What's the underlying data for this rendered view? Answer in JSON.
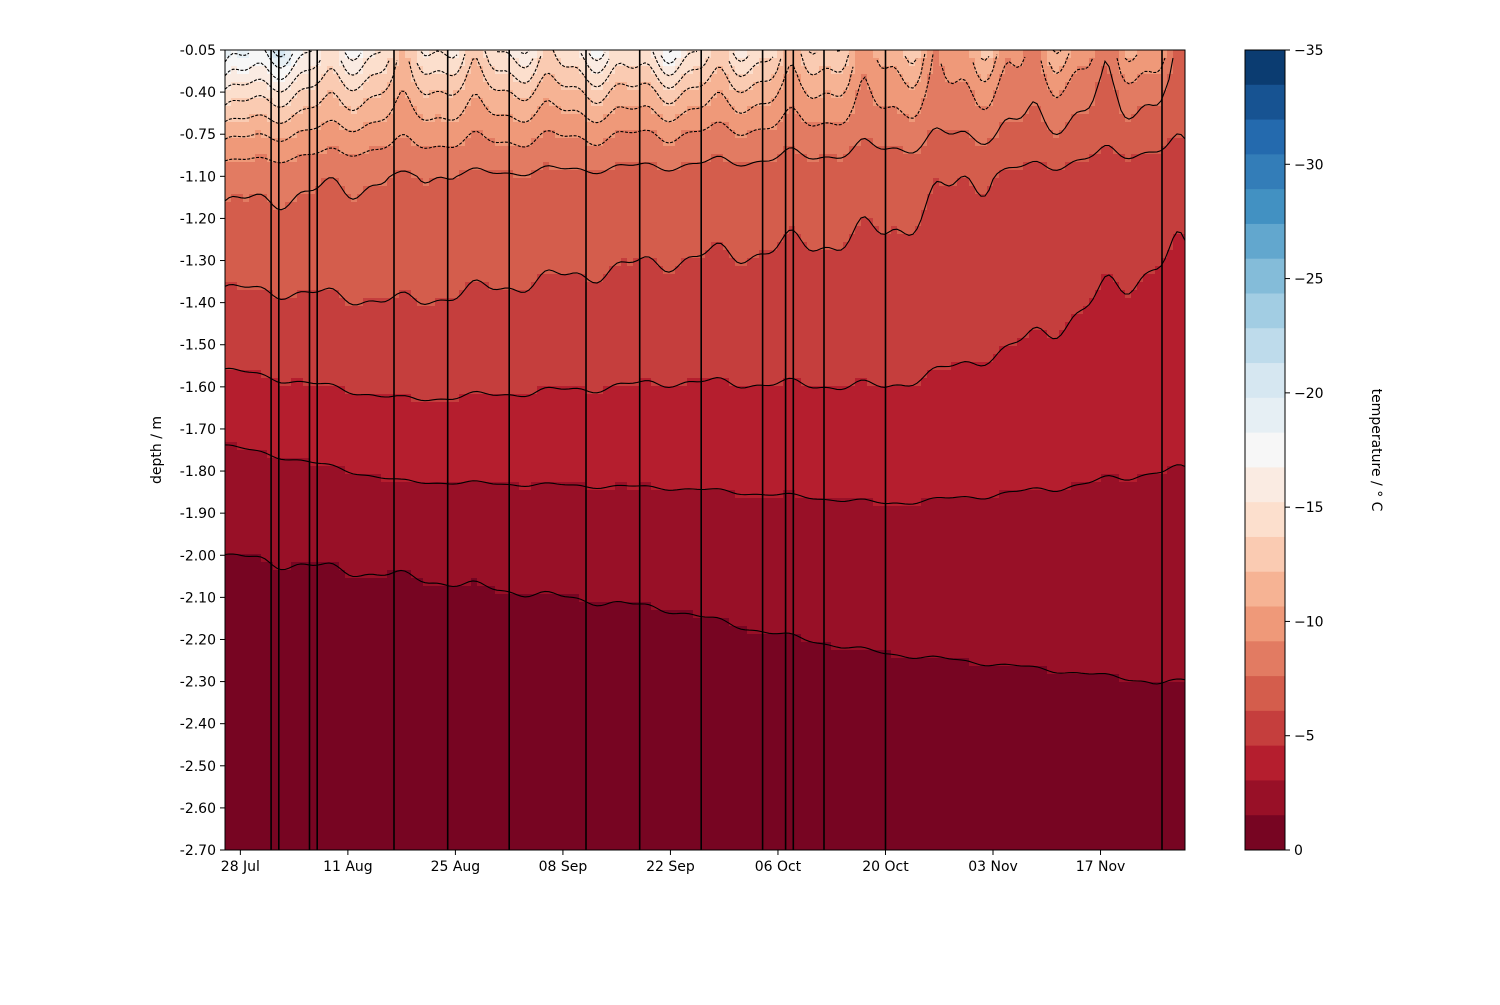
{
  "chart_data": {
    "type": "heatmap",
    "subtype": "filled-contour",
    "title": "",
    "xlabel": "",
    "ylabel": "depth / m",
    "colorbar_label": "temperature / ° C",
    "x_type": "date",
    "xlim": [
      "2025-07-26",
      "2025-11-28"
    ],
    "ylim": [
      -2.7,
      -0.05
    ],
    "x_ticks": [
      {
        "date": "2025-07-28",
        "label": "28 Jul"
      },
      {
        "date": "2025-08-11",
        "label": "11 Aug"
      },
      {
        "date": "2025-08-25",
        "label": "25 Aug"
      },
      {
        "date": "2025-09-08",
        "label": "08 Sep"
      },
      {
        "date": "2025-09-22",
        "label": "22 Sep"
      },
      {
        "date": "2025-10-06",
        "label": "06 Oct"
      },
      {
        "date": "2025-10-20",
        "label": "20 Oct"
      },
      {
        "date": "2025-11-03",
        "label": "03 Nov"
      },
      {
        "date": "2025-11-17",
        "label": "17 Nov"
      }
    ],
    "y_tick_labels": [
      "-0.05",
      "-0.40",
      "-0.75",
      "-1.10",
      "-1.20",
      "-1.30",
      "-1.40",
      "-1.50",
      "-1.60",
      "-1.70",
      "-1.80",
      "-1.90",
      "-2.00",
      "-2.10",
      "-2.20",
      "-2.30",
      "-2.40",
      "-2.50",
      "-2.60",
      "-2.70"
    ],
    "colorbar": {
      "range": [
        -35,
        0
      ],
      "level_step": 1.5,
      "tick_values": [
        -35,
        -30,
        -25,
        -20,
        -15,
        -10,
        -5,
        0
      ],
      "tick_labels": [
        "−35",
        "−30",
        "−25",
        "−20",
        "−15",
        "−10",
        "−5",
        "0"
      ],
      "colormap": "RdBu",
      "colormap_stops": [
        "#67001f",
        "#b2182b",
        "#d6604d",
        "#f4a582",
        "#fddbc7",
        "#f7f7f7",
        "#d1e5f0",
        "#92c5de",
        "#4393c3",
        "#2166ac",
        "#053061"
      ]
    },
    "contour_color": "#000000",
    "vertical_disturbance_dates": [
      "2025-08-01",
      "2025-08-02",
      "2025-08-06",
      "2025-08-07",
      "2025-08-17",
      "2025-08-24",
      "2025-09-01",
      "2025-09-11",
      "2025-09-18",
      "2025-09-26",
      "2025-10-04",
      "2025-10-07",
      "2025-10-08",
      "2025-10-12",
      "2025-10-20",
      "2025-11-25"
    ],
    "temperature_profile": [
      {
        "date": "2025-07-26",
        "depth_m": [
          -0.05,
          -0.4,
          -0.75,
          -1.1,
          -1.5,
          -1.8,
          -2.0,
          -2.3,
          -2.7
        ],
        "temp_c": [
          -20,
          -15,
          -11,
          -8,
          -5,
          -2.5,
          -1.5,
          -1.0,
          -0.8
        ]
      },
      {
        "date": "2025-08-18",
        "depth_m": [
          -0.05,
          -0.4,
          -0.75,
          -1.1,
          -1.5,
          -1.8,
          -2.0,
          -2.3,
          -2.7
        ],
        "temp_c": [
          -14,
          -11.5,
          -9.5,
          -7.5,
          -5.5,
          -3.2,
          -1.6,
          -1.0,
          -0.8
        ]
      },
      {
        "date": "2025-09-22",
        "depth_m": [
          -0.05,
          -0.4,
          -0.75,
          -1.1,
          -1.5,
          -1.8,
          -2.0,
          -2.3,
          -2.7
        ],
        "temp_c": [
          -16,
          -12,
          -9,
          -7,
          -5,
          -3.3,
          -1.8,
          -1.1,
          -0.9
        ]
      },
      {
        "date": "2025-10-20",
        "depth_m": [
          -0.05,
          -0.4,
          -0.75,
          -1.1,
          -1.5,
          -1.8,
          -2.0,
          -2.3,
          -2.7
        ],
        "temp_c": [
          -11,
          -9.5,
          -8,
          -6.5,
          -5,
          -3.5,
          -2.2,
          -1.3,
          -1.0
        ]
      },
      {
        "date": "2025-11-24",
        "depth_m": [
          -0.05,
          -0.4,
          -0.75,
          -1.1,
          -1.5,
          -1.8,
          -2.0,
          -2.3,
          -2.7
        ],
        "temp_c": [
          -9.5,
          -7.5,
          -6.5,
          -5,
          -4,
          -3,
          -2.3,
          -1.5,
          -1.1
        ]
      }
    ]
  }
}
